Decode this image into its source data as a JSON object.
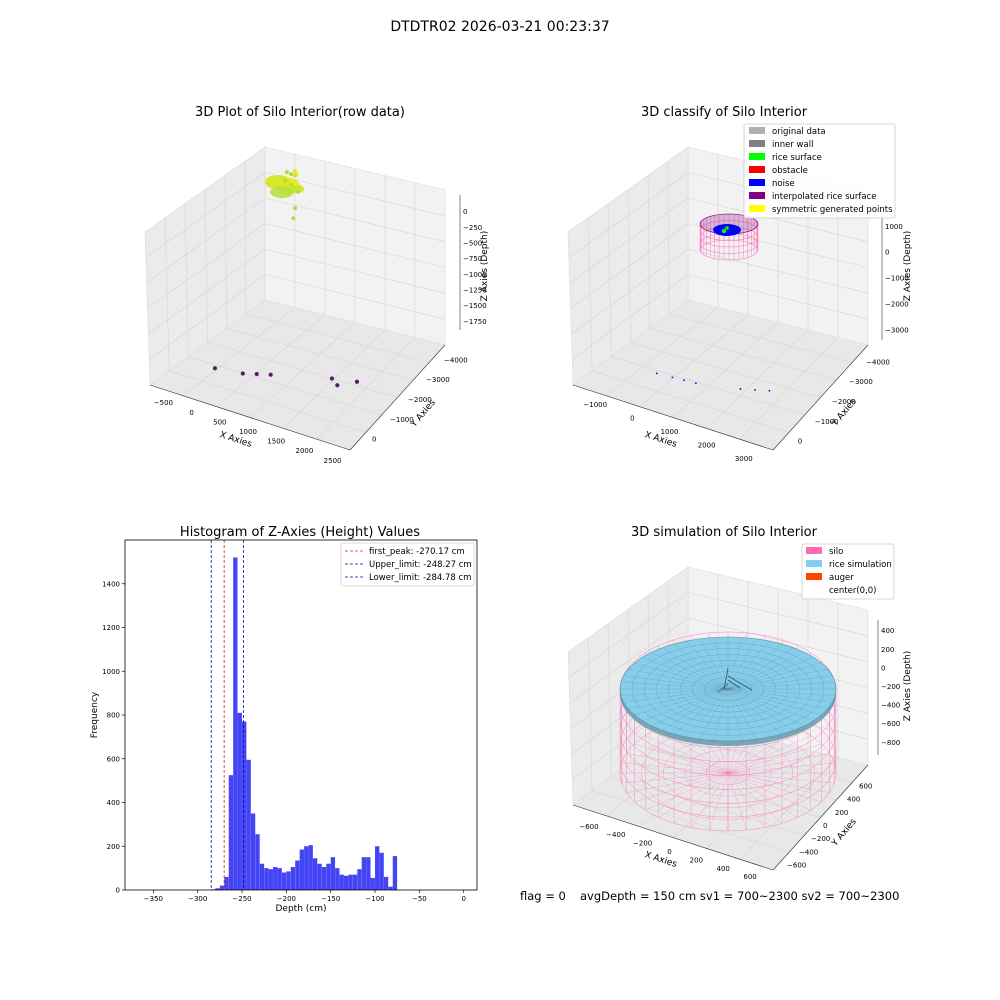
{
  "figure": {
    "suptitle": "DTDTR02 2026-03-21 00:23:37"
  },
  "chart_data": [
    {
      "id": "raw",
      "type": "scatter",
      "title": "3D Plot of Silo Interior(row data)",
      "xlabel": "X Axies",
      "ylabel": "Y Axies",
      "zlabel": "Z Axies (Depth)",
      "x_ticks": [
        "−500",
        "0",
        "500",
        "1000",
        "1500",
        "2000",
        "2500"
      ],
      "y_ticks": [
        "0",
        "−1000",
        "−2000",
        "−3000",
        "−4000"
      ],
      "z_ticks": [
        "0",
        "−250",
        "−500",
        "−750",
        "−1000",
        "−1250",
        "−1500",
        "−1750"
      ],
      "series": [
        {
          "color": "#a6e23a",
          "points": [
            [
              0,
              -300,
              -50
            ],
            [
              50,
              -250,
              -80
            ],
            [
              100,
              -200,
              -100
            ],
            [
              0,
              -350,
              -150
            ],
            [
              80,
              -300,
              -200
            ],
            [
              150,
              -200,
              -300
            ],
            [
              200,
              -400,
              -450
            ],
            [
              220,
              -500,
              -550
            ]
          ]
        },
        {
          "color": "#e6e619",
          "points": [
            [
              120,
              -250,
              -30
            ],
            [
              160,
              -280,
              -60
            ]
          ]
        },
        {
          "color": "#5a1a6a",
          "points": [
            [
              300,
              -3400,
              -1700
            ],
            [
              700,
              -3200,
              -1750
            ],
            [
              900,
              -3100,
              -1750
            ],
            [
              1100,
              -3000,
              -1750
            ],
            [
              2000,
              -2600,
              -1750
            ],
            [
              2200,
              -2800,
              -1750
            ],
            [
              2400,
              -2500,
              -1750
            ]
          ]
        }
      ]
    },
    {
      "id": "classify",
      "type": "scatter",
      "title": "3D classify of Silo Interior",
      "xlabel": "X Axies",
      "ylabel": "Y Axies",
      "zlabel": "Z Axies (Depth)",
      "x_ticks": [
        "−1000",
        "0",
        "1000",
        "2000",
        "3000"
      ],
      "y_ticks": [
        "0",
        "−1000",
        "−2000",
        "−3000",
        "−4000"
      ],
      "z_ticks": [
        "1000",
        "0",
        "−1000",
        "−2000",
        "−3000"
      ],
      "legend": [
        {
          "label": "original data",
          "color": "#b0b0b0"
        },
        {
          "label": "inner wall",
          "color": "#808080"
        },
        {
          "label": "rice surface",
          "color": "#00ff00"
        },
        {
          "label": "obstacle",
          "color": "#ff0000"
        },
        {
          "label": "noise",
          "color": "#0000ff"
        },
        {
          "label": "interpolated rice surface",
          "color": "#800080"
        },
        {
          "label": "symmetric generated points",
          "color": "#ffff00"
        }
      ],
      "cylinder_color": "#ff69b4",
      "noise_points": [
        [
          0,
          -3000,
          -3000
        ],
        [
          400,
          -3000,
          -3000
        ],
        [
          700,
          -3000,
          -3000
        ],
        [
          1000,
          -3000,
          -3000
        ],
        [
          2000,
          -2800,
          -3000
        ],
        [
          2300,
          -2700,
          -3000
        ],
        [
          2600,
          -2600,
          -3000
        ]
      ]
    },
    {
      "id": "hist",
      "type": "bar",
      "title": "Histogram of Z-Axies (Height) Values",
      "xlabel": "Depth (cm)",
      "ylabel": "Frequency",
      "xlim": [
        -382,
        15
      ],
      "ylim": [
        0,
        1600
      ],
      "x_ticks": [
        -350,
        -300,
        -250,
        -200,
        -150,
        -100,
        -50,
        0
      ],
      "x_tick_labels": [
        "−350",
        "−300",
        "−250",
        "−200",
        "−150",
        "−100",
        "−50",
        "0"
      ],
      "y_ticks": [
        0,
        200,
        400,
        600,
        800,
        1000,
        1200,
        1400
      ],
      "y_tick_labels": [
        "0",
        "200",
        "400",
        "600",
        "800",
        "1000",
        "1200",
        "1400"
      ],
      "bin_start": -380,
      "bin_width": 5,
      "values": [
        0,
        0,
        0,
        0,
        0,
        0,
        0,
        0,
        0,
        0,
        0,
        0,
        0,
        0,
        0,
        0,
        0,
        0,
        0,
        3,
        8,
        20,
        60,
        525,
        1520,
        810,
        770,
        595,
        350,
        255,
        120,
        100,
        95,
        105,
        100,
        80,
        85,
        105,
        135,
        185,
        200,
        205,
        145,
        120,
        105,
        120,
        150,
        100,
        70,
        65,
        70,
        70,
        95,
        150,
        150,
        55,
        200,
        170,
        60,
        15,
        155
      ],
      "bar_color": "#4444f5",
      "vlines": [
        {
          "label": "first_peak: -270.17 cm",
          "x": -270.17,
          "color": "#e02020"
        },
        {
          "label": "Upper_limit: -248.27 cm",
          "x": -248.27,
          "color": "#0a0aaa"
        },
        {
          "label": "Lower_limit: -284.78 cm",
          "x": -284.78,
          "color": "#0a0aaa"
        }
      ]
    },
    {
      "id": "sim",
      "type": "scatter",
      "title": "3D simulation of Silo Interior",
      "xlabel": "X Axies",
      "ylabel": "Y Axies",
      "zlabel": "Z Axies (Depth)",
      "x_ticks": [
        "−600",
        "−400",
        "−200",
        "0",
        "200",
        "400",
        "600"
      ],
      "y_ticks": [
        "600",
        "400",
        "200",
        "0",
        "−200",
        "−400",
        "−600"
      ],
      "z_ticks": [
        "400",
        "200",
        "0",
        "−200",
        "−400",
        "−600",
        "−800"
      ],
      "legend": [
        {
          "label": "silo",
          "color": "#ff69b4"
        },
        {
          "label": "rice simulation",
          "color": "#87ceeb"
        },
        {
          "label": "auger",
          "color": "#ff4500"
        },
        {
          "label": "center(0,0)",
          "color": "#ffffff"
        }
      ],
      "silo_color": "#ff69b4",
      "rice_color": "#87ceeb"
    }
  ],
  "footer": {
    "flag": "flag = 0",
    "avg": "avgDepth = 150 cm  sv1 = 700~2300  sv2 = 700~2300"
  }
}
